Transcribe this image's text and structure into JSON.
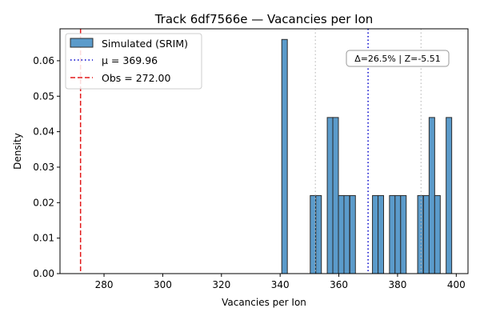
{
  "chart_data": {
    "type": "bar",
    "title": "Track 6df7566e — Vacancies per Ion",
    "xlabel": "Vacancies per Ion",
    "ylabel": "Density",
    "xlim": [
      265,
      404
    ],
    "ylim": [
      0,
      0.069
    ],
    "xticks": [
      280,
      300,
      320,
      340,
      360,
      380,
      400
    ],
    "yticks": [
      0.0,
      0.01,
      0.02,
      0.03,
      0.04,
      0.05,
      0.06
    ],
    "xtick_labels": [
      "280",
      "300",
      "320",
      "340",
      "360",
      "380",
      "400"
    ],
    "ytick_labels": [
      "0.00",
      "0.01",
      "0.02",
      "0.03",
      "0.04",
      "0.05",
      "0.06"
    ],
    "grid": false,
    "bin_width": 1.9,
    "series": [
      {
        "name": "Simulated (SRIM)",
        "color": "#5b9bcb",
        "edge_color": "#2b2b2b",
        "bins": [
          {
            "x": 341.5,
            "density": 0.066
          },
          {
            "x": 351.2,
            "density": 0.022
          },
          {
            "x": 353.1,
            "density": 0.022
          },
          {
            "x": 357.0,
            "density": 0.044
          },
          {
            "x": 358.9,
            "density": 0.044
          },
          {
            "x": 360.8,
            "density": 0.022
          },
          {
            "x": 362.7,
            "density": 0.022
          },
          {
            "x": 364.7,
            "density": 0.022
          },
          {
            "x": 372.4,
            "density": 0.022
          },
          {
            "x": 374.3,
            "density": 0.022
          },
          {
            "x": 378.2,
            "density": 0.022
          },
          {
            "x": 380.1,
            "density": 0.022
          },
          {
            "x": 382.0,
            "density": 0.022
          },
          {
            "x": 387.8,
            "density": 0.022
          },
          {
            "x": 389.8,
            "density": 0.022
          },
          {
            "x": 391.7,
            "density": 0.044
          },
          {
            "x": 393.6,
            "density": 0.022
          },
          {
            "x": 397.5,
            "density": 0.044
          }
        ]
      }
    ],
    "reference_lines": [
      {
        "name": "μ = 369.96",
        "x": 369.96,
        "color": "#0000cc",
        "style": "dotted"
      },
      {
        "name": "Obs = 272.00",
        "x": 272.0,
        "color": "#e31a1c",
        "style": "dashed"
      }
    ],
    "band_lines": [
      {
        "x": 352.0,
        "color": "#bdbdbd",
        "style": "dotted"
      },
      {
        "x": 388.0,
        "color": "#bdbdbd",
        "style": "dotted"
      }
    ],
    "legend_position": "upper-left",
    "annotation": "Δ=26.5% | Z=-5.51"
  }
}
